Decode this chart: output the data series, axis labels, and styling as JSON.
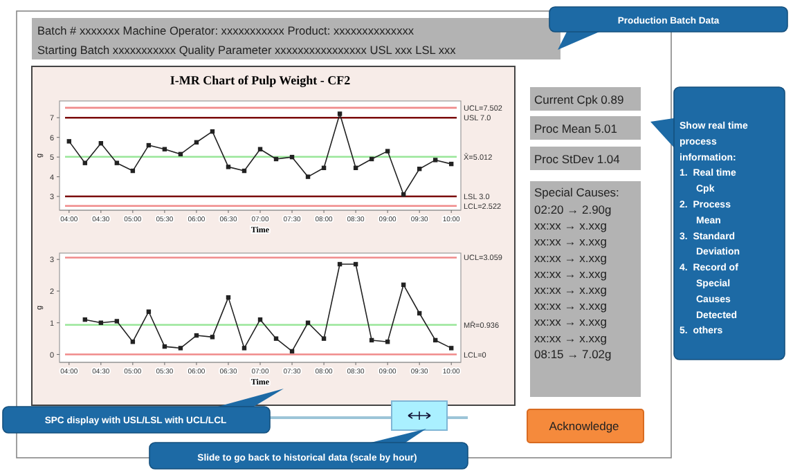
{
  "chart_data": [
    {
      "type": "line",
      "title": "I-MR Chart of Pulp Weight - CF2",
      "xlabel": "Time",
      "ylabel": "g",
      "marker": "square",
      "line_style": "solid",
      "grid": false,
      "x": [
        4,
        4.25,
        4.5,
        4.75,
        5,
        5.25,
        5.5,
        5.75,
        6,
        6.25,
        6.5,
        6.75,
        7,
        7.25,
        7.5,
        7.75,
        8,
        8.25,
        8.5,
        8.75,
        9,
        9.25,
        9.5,
        9.75,
        10
      ],
      "series": [
        {
          "color": "#222222",
          "values": [
            5.8,
            4.7,
            5.7,
            4.7,
            4.3,
            5.6,
            5.4,
            5.15,
            5.75,
            6.3,
            4.5,
            4.3,
            5.4,
            4.9,
            5.0,
            4.0,
            4.45,
            7.2,
            4.45,
            4.9,
            5.3,
            3.1,
            4.4,
            4.85,
            4.65
          ]
        }
      ],
      "xlim": [
        3.85,
        10.15
      ],
      "ylim": [
        2.3,
        7.85
      ],
      "xticks": [
        {
          "value": 4,
          "label": "04:00"
        },
        {
          "value": 4.5,
          "label": "04:30"
        },
        {
          "value": 5,
          "label": "05:00"
        },
        {
          "value": 5.5,
          "label": "05:30"
        },
        {
          "value": 6,
          "label": "06:00"
        },
        {
          "value": 6.5,
          "label": "06:30"
        },
        {
          "value": 7,
          "label": "07:00"
        },
        {
          "value": 7.5,
          "label": "07:30"
        },
        {
          "value": 8,
          "label": "08:00"
        },
        {
          "value": 8.5,
          "label": "08:30"
        },
        {
          "value": 9,
          "label": "09:00"
        },
        {
          "value": 9.5,
          "label": "09:30"
        },
        {
          "value": 10,
          "label": "10:00"
        }
      ],
      "yticks": [
        3,
        4,
        5,
        6,
        7
      ],
      "ref_lines": [
        {
          "axis": "y",
          "value": 7.502,
          "label": "UCL=7.502",
          "color": "#f08a8a"
        },
        {
          "axis": "y",
          "value": 7.0,
          "label": "USL 7.0",
          "color": "#7a0a0a"
        },
        {
          "axis": "y",
          "value": 5.012,
          "label": "X̄=5.012",
          "color": "#99e699"
        },
        {
          "axis": "y",
          "value": 3.0,
          "label": "LSL 3.0",
          "color": "#7a0a0a"
        },
        {
          "axis": "y",
          "value": 2.522,
          "label": "LCL=2.522",
          "color": "#f08a8a"
        }
      ]
    },
    {
      "type": "line",
      "xlabel": "Time",
      "ylabel": "g",
      "marker": "square",
      "line_style": "solid",
      "grid": false,
      "x": [
        4.25,
        4.5,
        4.75,
        5,
        5.25,
        5.5,
        5.75,
        6,
        6.25,
        6.5,
        6.75,
        7,
        7.25,
        7.5,
        7.75,
        8,
        8.25,
        8.5,
        8.75,
        9,
        9.25,
        9.5,
        9.75,
        10
      ],
      "series": [
        {
          "color": "#222222",
          "values": [
            1.1,
            1.0,
            1.05,
            0.4,
            1.35,
            0.25,
            0.2,
            0.6,
            0.55,
            1.8,
            0.2,
            1.1,
            0.5,
            0.1,
            1.0,
            0.5,
            2.85,
            2.85,
            0.45,
            0.4,
            2.2,
            1.3,
            0.45,
            0.2
          ]
        }
      ],
      "xlim": [
        3.85,
        10.15
      ],
      "ylim": [
        -0.25,
        3.2
      ],
      "xticks": [
        {
          "value": 4,
          "label": "04:00"
        },
        {
          "value": 4.5,
          "label": "04:30"
        },
        {
          "value": 5,
          "label": "05:00"
        },
        {
          "value": 5.5,
          "label": "05:30"
        },
        {
          "value": 6,
          "label": "06:00"
        },
        {
          "value": 6.5,
          "label": "06:30"
        },
        {
          "value": 7,
          "label": "07:00"
        },
        {
          "value": 7.5,
          "label": "07:30"
        },
        {
          "value": 8,
          "label": "08:00"
        },
        {
          "value": 8.5,
          "label": "08:30"
        },
        {
          "value": 9,
          "label": "09:00"
        },
        {
          "value": 9.5,
          "label": "09:30"
        },
        {
          "value": 10,
          "label": "10:00"
        }
      ],
      "yticks": [
        0,
        1,
        2,
        3
      ],
      "ref_lines": [
        {
          "axis": "y",
          "value": 3.059,
          "label": "UCL=3.059",
          "color": "#f08a8a"
        },
        {
          "axis": "y",
          "value": 0.936,
          "label": "MR̄=0.936",
          "color": "#99e699"
        },
        {
          "axis": "y",
          "value": 0,
          "label": "LCL=0",
          "color": "#f08a8a"
        }
      ]
    },
    {
      "type": "other",
      "annotations": [
        "Batch # xxxxxxx   Machine Operator:  xxxxxxxxxxx  Product: xxxxxxxxxxxxxx",
        "Starting Batch xxxxxxxxxxx  Quality Parameter xxxxxxxxxxxxxxxx USL xxx LSL  xxx",
        "Production Batch Data",
        "Current Cpk 0.89",
        "Proc Mean  5.01",
        "Proc StDev  1.04",
        "Special Causes:",
        "02:20 → 2.90g",
        "xx:xx → x.xxg",
        "xx:xx → x.xxg",
        "xx:xx → x.xxg",
        "xx:xx → x.xxg",
        "xx:xx → x.xxg",
        "xx:xx → x.xxg",
        "xx:xx → x.xxg",
        "xx:xx → x.xxg",
        "08:15 → 7.02g",
        "Acknowledge",
        "SPC display with USL/LSL with UCL/LCL",
        "Slide to go back to historical data (scale by hour)",
        "Show real time process information:",
        "1. Real time Cpk",
        "2. Process Mean",
        "3. Standard Deviation",
        "4. Record of Special Causes Detected",
        "5. others"
      ]
    }
  ]
}
